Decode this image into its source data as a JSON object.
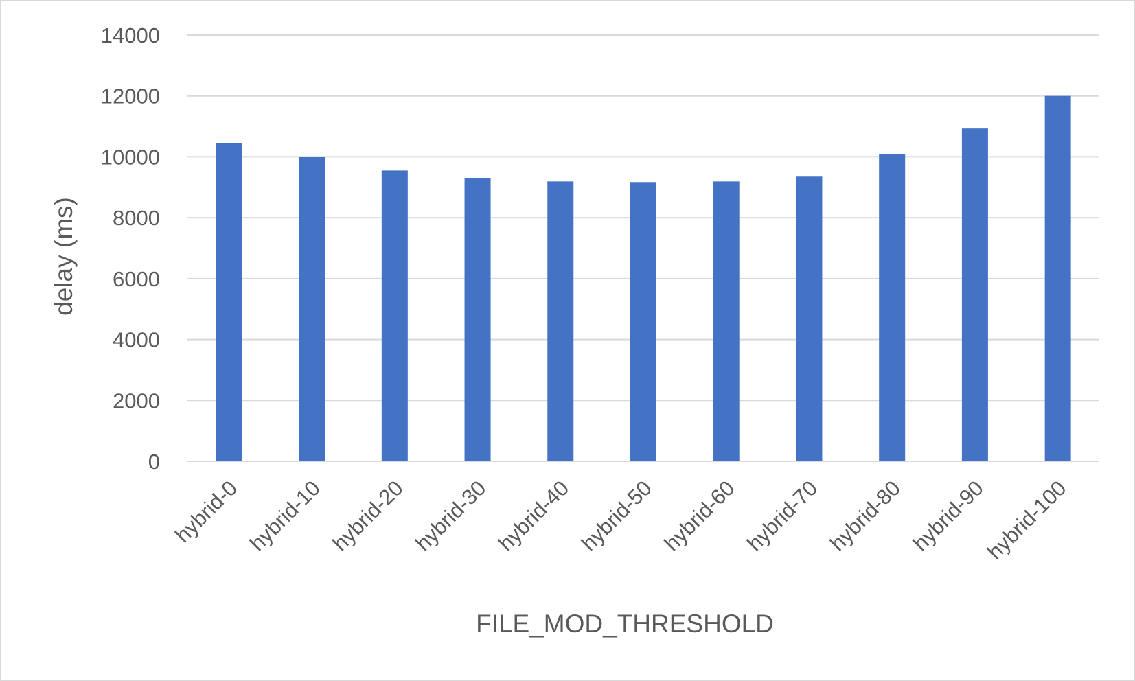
{
  "chart_data": {
    "type": "bar",
    "title": "",
    "xlabel": "FILE_MOD_THRESHOLD",
    "ylabel": "delay (ms)",
    "categories": [
      "hybrid-0",
      "hybrid-10",
      "hybrid-20",
      "hybrid-30",
      "hybrid-40",
      "hybrid-50",
      "hybrid-60",
      "hybrid-70",
      "hybrid-80",
      "hybrid-90",
      "hybrid-100"
    ],
    "series": [
      {
        "values": [
          10450,
          10000,
          9550,
          9300,
          9190,
          9170,
          9190,
          9350,
          10100,
          10930,
          12000
        ],
        "color": "#4472c4"
      }
    ],
    "ylim": [
      0,
      14000
    ],
    "yticks": [
      "0",
      "2000",
      "4000",
      "6000",
      "8000",
      "10000",
      "12000",
      "14000"
    ],
    "grid": true,
    "legend": "none"
  }
}
